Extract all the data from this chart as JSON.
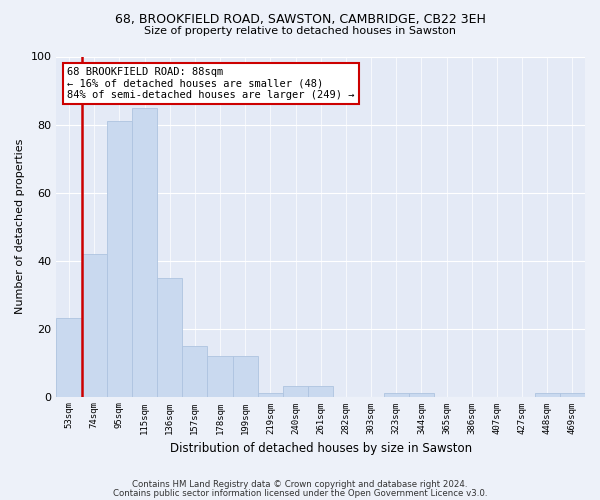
{
  "title1": "68, BROOKFIELD ROAD, SAWSTON, CAMBRIDGE, CB22 3EH",
  "title2": "Size of property relative to detached houses in Sawston",
  "xlabel": "Distribution of detached houses by size in Sawston",
  "ylabel": "Number of detached properties",
  "bin_labels": [
    "53sqm",
    "74sqm",
    "95sqm",
    "115sqm",
    "136sqm",
    "157sqm",
    "178sqm",
    "199sqm",
    "219sqm",
    "240sqm",
    "261sqm",
    "282sqm",
    "303sqm",
    "323sqm",
    "344sqm",
    "365sqm",
    "386sqm",
    "407sqm",
    "427sqm",
    "448sqm",
    "469sqm"
  ],
  "bar_heights": [
    23,
    42,
    81,
    85,
    35,
    15,
    12,
    12,
    1,
    3,
    3,
    0,
    0,
    1,
    1,
    0,
    0,
    0,
    0,
    1,
    1
  ],
  "bar_color": "#c9d9ef",
  "bar_edge_color": "#aec4e0",
  "annotation_title": "68 BROOKFIELD ROAD: 88sqm",
  "annotation_line1": "← 16% of detached houses are smaller (48)",
  "annotation_line2": "84% of semi-detached houses are larger (249) →",
  "ylim": [
    0,
    100
  ],
  "yticks": [
    0,
    20,
    40,
    60,
    80,
    100
  ],
  "footer1": "Contains HM Land Registry data © Crown copyright and database right 2024.",
  "footer2": "Contains public sector information licensed under the Open Government Licence v3.0.",
  "bg_color": "#edf1f9",
  "plot_bg_color": "#e4eaf6",
  "red_line_color": "#cc0000",
  "grid_color": "#ffffff",
  "ann_box_color": "#ffffff",
  "ann_edge_color": "#cc0000"
}
